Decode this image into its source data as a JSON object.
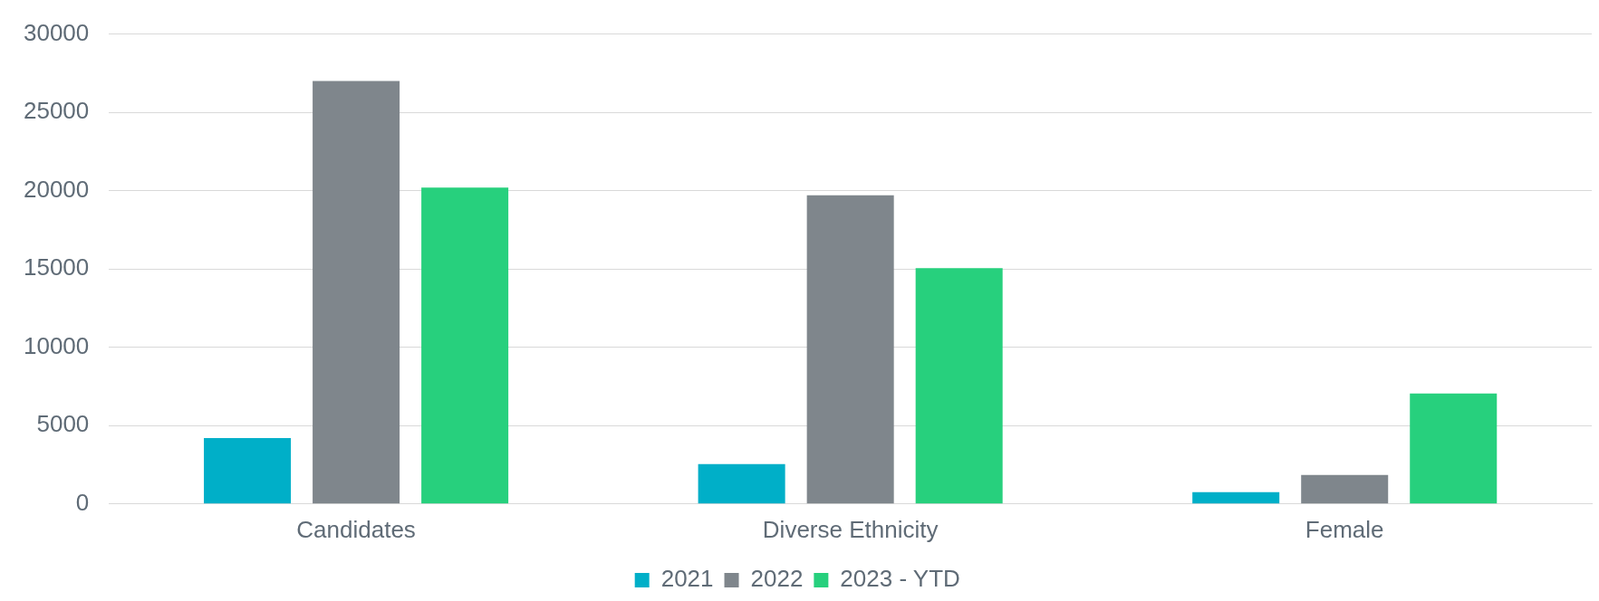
{
  "chart_data": {
    "type": "bar",
    "categories": [
      "Candidates",
      "Diverse Ethnicity",
      "Female"
    ],
    "series": [
      {
        "name": "2021",
        "color": "#00afc8",
        "values": [
          4200,
          2550,
          750
        ]
      },
      {
        "name": "2022",
        "color": "#7f868c",
        "values": [
          27000,
          19700,
          1850
        ]
      },
      {
        "name": "2023 - YTD",
        "color": "#27d07d",
        "values": [
          20200,
          15050,
          7050
        ]
      }
    ],
    "ylim": [
      0,
      30000
    ],
    "yticks": [
      0,
      5000,
      10000,
      15000,
      20000,
      25000,
      30000
    ],
    "grid": "y",
    "legend": "bottom"
  }
}
